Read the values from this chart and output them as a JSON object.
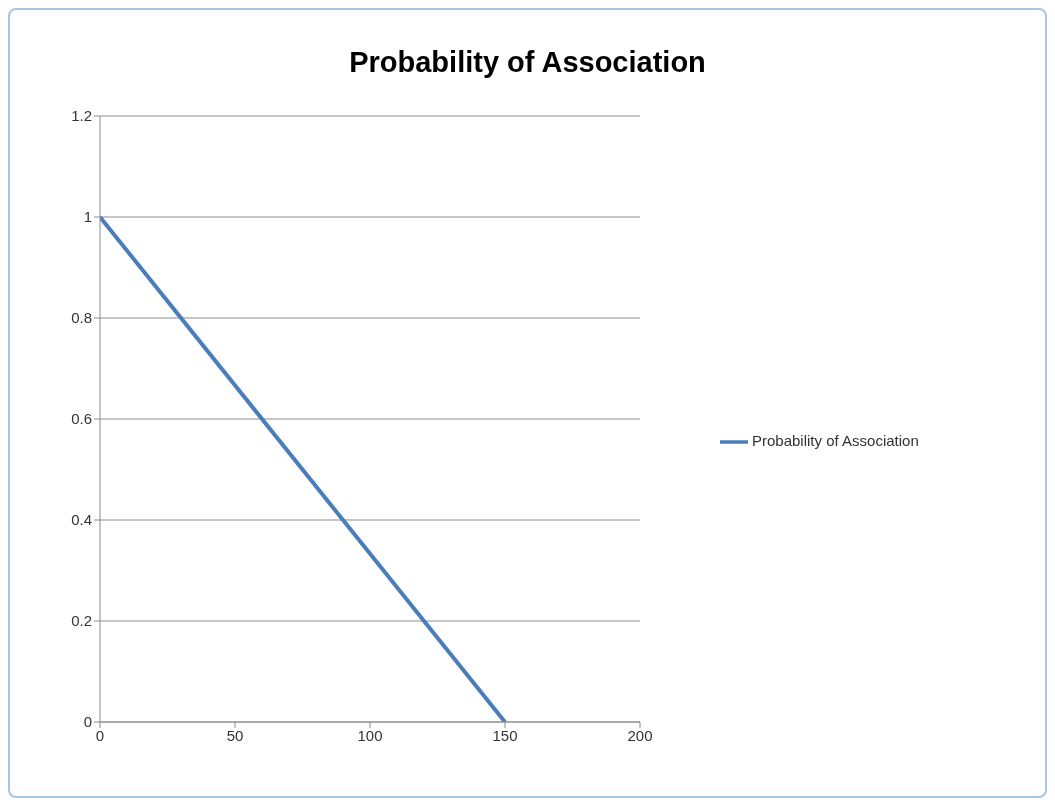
{
  "chart_data": {
    "type": "line",
    "title": "Probability of Association",
    "x": [
      0,
      150
    ],
    "series": [
      {
        "name": "Probability of Association",
        "color": "#4a7ebb",
        "values": [
          1,
          0
        ]
      }
    ],
    "xlim": [
      0,
      200
    ],
    "xticks": [
      0,
      50,
      100,
      150,
      200
    ],
    "ylim": [
      0,
      1.2
    ],
    "yticks": [
      0,
      0.2,
      0.4,
      0.6,
      0.8,
      1,
      1.2
    ],
    "grid": "y",
    "legend": "right",
    "marker": "none",
    "line_style": "solid"
  }
}
